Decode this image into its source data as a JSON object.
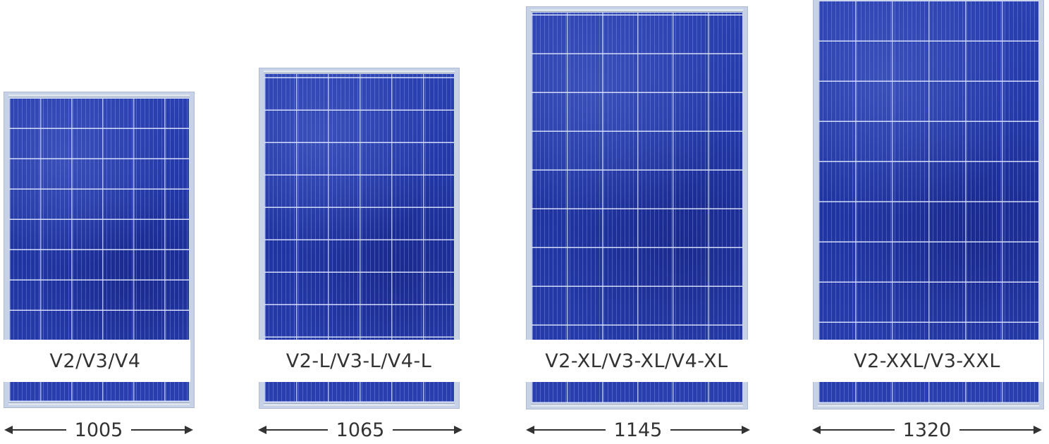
{
  "panels": [
    {
      "model_label": "V2/V3/V4",
      "width_value": "1005"
    },
    {
      "model_label": "V2-L/V3-L/V4-L",
      "width_value": "1065"
    },
    {
      "model_label": "V2-XL/V3-XL/V4-XL",
      "width_value": "1145"
    },
    {
      "model_label": "V2-XXL/V3-XXL",
      "width_value": "1320"
    }
  ],
  "colors": {
    "cell_blue": "#2438a4",
    "frame": "#c7d2e6",
    "text": "#333333"
  },
  "icons": [
    "double-arrow-left-icon",
    "double-arrow-right-icon"
  ]
}
